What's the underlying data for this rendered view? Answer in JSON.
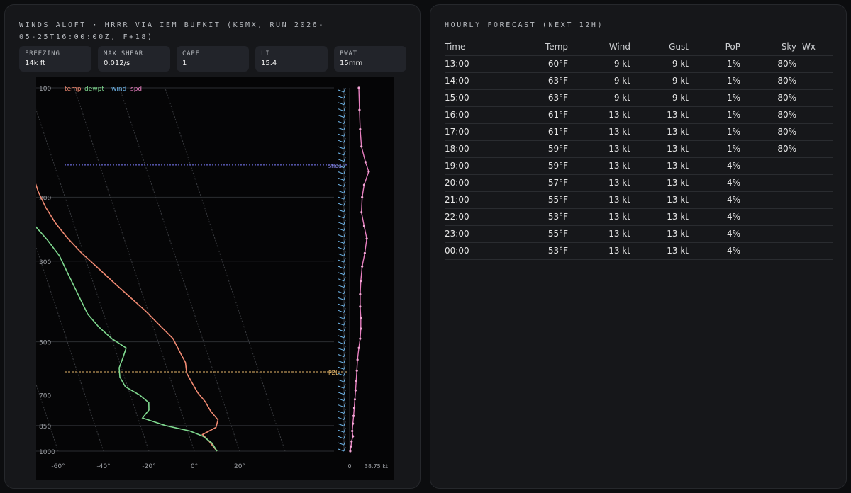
{
  "left_panel": {
    "title": "WINDS ALOFT · HRRR VIA IEM BUFKIT (KSMX, RUN 2026-05-25T16:00:00Z, F+18)",
    "stats": [
      {
        "label": "FREEZING",
        "value": "14k ft"
      },
      {
        "label": "MAX SHEAR",
        "value": "0.012/s"
      },
      {
        "label": "CAPE",
        "value": "1"
      },
      {
        "label": "LI",
        "value": "15.4"
      },
      {
        "label": "PWAT",
        "value": "15mm"
      }
    ]
  },
  "chart_data": {
    "type": "line",
    "legend": [
      "temp",
      "dewpt",
      "wind",
      "spd"
    ],
    "colors": {
      "temp": "#f08a72",
      "dewpt": "#7fd98f",
      "wind": "#6fb6ea",
      "spd": "#e87fc0",
      "shear": "#7f7fff",
      "fzl": "#e7b86a"
    },
    "pressure_ticks": [
      100,
      200,
      300,
      500,
      700,
      850,
      1000
    ],
    "temp_ticks": [
      "-60°",
      "-40°",
      "-20°",
      "0°",
      "20°"
    ],
    "temp_tick_values": [
      -60,
      -40,
      -20,
      0,
      20
    ],
    "speed_axis": {
      "min_label": "0",
      "max_label": "38.75 kt",
      "max": 38.75
    },
    "freezing_level_label": "FZL",
    "freezing_level_p": 605,
    "shear_label": "shear",
    "shear_p": 163,
    "levels": [
      {
        "p": 100,
        "t": -17
      },
      {
        "p": 110,
        "t": -22
      },
      {
        "p": 122,
        "t": -26
      },
      {
        "p": 134,
        "t": -28
      },
      {
        "p": 146,
        "t": -29
      },
      {
        "p": 160,
        "t": -30
      },
      {
        "p": 176,
        "t": -31
      },
      {
        "p": 193,
        "t": -31
      },
      {
        "p": 213,
        "t": -30
      },
      {
        "p": 235,
        "t": -28
      },
      {
        "p": 258,
        "t": -25
      },
      {
        "p": 284,
        "t": -21
      },
      {
        "p": 312,
        "t": -16
      },
      {
        "p": 343,
        "t": -11
      },
      {
        "p": 376,
        "t": -6
      },
      {
        "p": 412,
        "t": -1
      },
      {
        "p": 450,
        "t": 3
      },
      {
        "p": 490,
        "t": 7
      },
      {
        "p": 530,
        "t": 8
      },
      {
        "p": 570,
        "t": 9
      },
      {
        "p": 610,
        "t": 8
      },
      {
        "p": 650,
        "t": 9
      },
      {
        "p": 690,
        "t": 10
      },
      {
        "p": 730,
        "t": 12
      },
      {
        "p": 775,
        "t": 13
      },
      {
        "p": 820,
        "t": 15
      },
      {
        "p": 860,
        "t": 13
      },
      {
        "p": 900,
        "t": 6
      },
      {
        "p": 940,
        "t": 8
      },
      {
        "p": 970,
        "t": 9
      },
      {
        "p": 1000,
        "t": 10
      }
    ],
    "dewpt_levels": [
      {
        "p": 146,
        "t": -45
      },
      {
        "p": 163,
        "t": -42
      },
      {
        "p": 185,
        "t": -40
      },
      {
        "p": 210,
        "t": -39
      },
      {
        "p": 236,
        "t": -38
      },
      {
        "p": 262,
        "t": -34
      },
      {
        "p": 290,
        "t": -31
      },
      {
        "p": 320,
        "t": -30
      },
      {
        "p": 350,
        "t": -29
      },
      {
        "p": 385,
        "t": -28
      },
      {
        "p": 420,
        "t": -27
      },
      {
        "p": 455,
        "t": -24
      },
      {
        "p": 490,
        "t": -20
      },
      {
        "p": 520,
        "t": -15
      },
      {
        "p": 555,
        "t": -18
      },
      {
        "p": 590,
        "t": -21
      },
      {
        "p": 625,
        "t": -22
      },
      {
        "p": 665,
        "t": -21
      },
      {
        "p": 700,
        "t": -16
      },
      {
        "p": 735,
        "t": -13
      },
      {
        "p": 770,
        "t": -14
      },
      {
        "p": 810,
        "t": -18
      },
      {
        "p": 850,
        "t": -9
      },
      {
        "p": 880,
        "t": 1
      },
      {
        "p": 910,
        "t": 6
      },
      {
        "p": 950,
        "t": 9
      },
      {
        "p": 1000,
        "t": 10
      }
    ],
    "speed_levels": [
      {
        "p": 100,
        "s": 14
      },
      {
        "p": 115,
        "s": 15
      },
      {
        "p": 130,
        "s": 16
      },
      {
        "p": 145,
        "s": 18
      },
      {
        "p": 160,
        "s": 24
      },
      {
        "p": 170,
        "s": 29
      },
      {
        "p": 185,
        "s": 22
      },
      {
        "p": 200,
        "s": 19
      },
      {
        "p": 220,
        "s": 18
      },
      {
        "p": 240,
        "s": 22
      },
      {
        "p": 260,
        "s": 26
      },
      {
        "p": 285,
        "s": 23
      },
      {
        "p": 310,
        "s": 19
      },
      {
        "p": 340,
        "s": 17
      },
      {
        "p": 370,
        "s": 16
      },
      {
        "p": 400,
        "s": 16
      },
      {
        "p": 430,
        "s": 17
      },
      {
        "p": 460,
        "s": 17
      },
      {
        "p": 490,
        "s": 16
      },
      {
        "p": 520,
        "s": 14
      },
      {
        "p": 560,
        "s": 12
      },
      {
        "p": 600,
        "s": 11
      },
      {
        "p": 640,
        "s": 10
      },
      {
        "p": 680,
        "s": 9
      },
      {
        "p": 720,
        "s": 8
      },
      {
        "p": 760,
        "s": 7
      },
      {
        "p": 800,
        "s": 6
      },
      {
        "p": 840,
        "s": 5
      },
      {
        "p": 880,
        "s": 4
      },
      {
        "p": 910,
        "s": 5
      },
      {
        "p": 940,
        "s": 3
      },
      {
        "p": 970,
        "s": 2
      },
      {
        "p": 1000,
        "s": 1
      }
    ]
  },
  "right_panel": {
    "title": "HOURLY FORECAST (NEXT 12H)",
    "columns": [
      "Time",
      "Temp",
      "Wind",
      "Gust",
      "PoP",
      "Sky",
      "Wx"
    ],
    "rows": [
      [
        "13:00",
        "60°F",
        "9 kt",
        "9 kt",
        "1%",
        "80%",
        "—"
      ],
      [
        "14:00",
        "63°F",
        "9 kt",
        "9 kt",
        "1%",
        "80%",
        "—"
      ],
      [
        "15:00",
        "63°F",
        "9 kt",
        "9 kt",
        "1%",
        "80%",
        "—"
      ],
      [
        "16:00",
        "61°F",
        "13 kt",
        "13 kt",
        "1%",
        "80%",
        "—"
      ],
      [
        "17:00",
        "61°F",
        "13 kt",
        "13 kt",
        "1%",
        "80%",
        "—"
      ],
      [
        "18:00",
        "59°F",
        "13 kt",
        "13 kt",
        "1%",
        "80%",
        "—"
      ],
      [
        "19:00",
        "59°F",
        "13 kt",
        "13 kt",
        "4%",
        "—",
        "—"
      ],
      [
        "20:00",
        "57°F",
        "13 kt",
        "13 kt",
        "4%",
        "—",
        "—"
      ],
      [
        "21:00",
        "55°F",
        "13 kt",
        "13 kt",
        "4%",
        "—",
        "—"
      ],
      [
        "22:00",
        "53°F",
        "13 kt",
        "13 kt",
        "4%",
        "—",
        "—"
      ],
      [
        "23:00",
        "55°F",
        "13 kt",
        "13 kt",
        "4%",
        "—",
        "—"
      ],
      [
        "00:00",
        "53°F",
        "13 kt",
        "13 kt",
        "4%",
        "—",
        "—"
      ]
    ]
  }
}
